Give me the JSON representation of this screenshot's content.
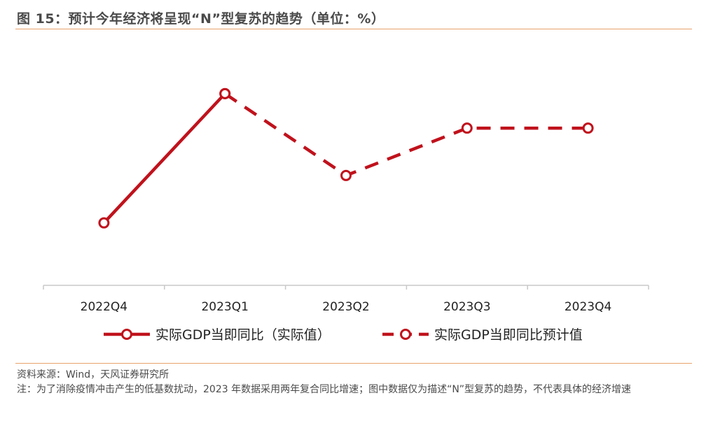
{
  "header": {
    "title": "图 15：预计今年经济将呈现“N”型复苏的趋势（单位：%）"
  },
  "footer": {
    "source": "资料来源：Wind，天风证券研究所",
    "note": "注：为了消除疫情冲击产生的低基数扰动，2023 年数据采用两年复合同比增速；图中数据仅为描述“N”型复苏的趋势，不代表具体的经济增速"
  },
  "colors": {
    "series": "#c0121c",
    "rule": "#e8a26a",
    "axis": "#c8c8c8"
  },
  "chart_data": {
    "type": "line",
    "title": "预计今年经济将呈现“N”型复苏的趋势（单位：%）",
    "categories": [
      "2022Q4",
      "2023Q1",
      "2023Q2",
      "2023Q3",
      "2023Q4"
    ],
    "ylim": [
      0,
      10
    ],
    "grid": false,
    "y_axis_labels_shown": false,
    "legend_position": "bottom",
    "series": [
      {
        "name": "实际GDP当即同比（实际值）",
        "style": "solid",
        "values": [
          2.9,
          8.9,
          null,
          null,
          null
        ]
      },
      {
        "name": "实际GDP当即同比预计值",
        "style": "dashed",
        "values": [
          null,
          8.9,
          5.1,
          7.3,
          7.3
        ]
      }
    ]
  }
}
